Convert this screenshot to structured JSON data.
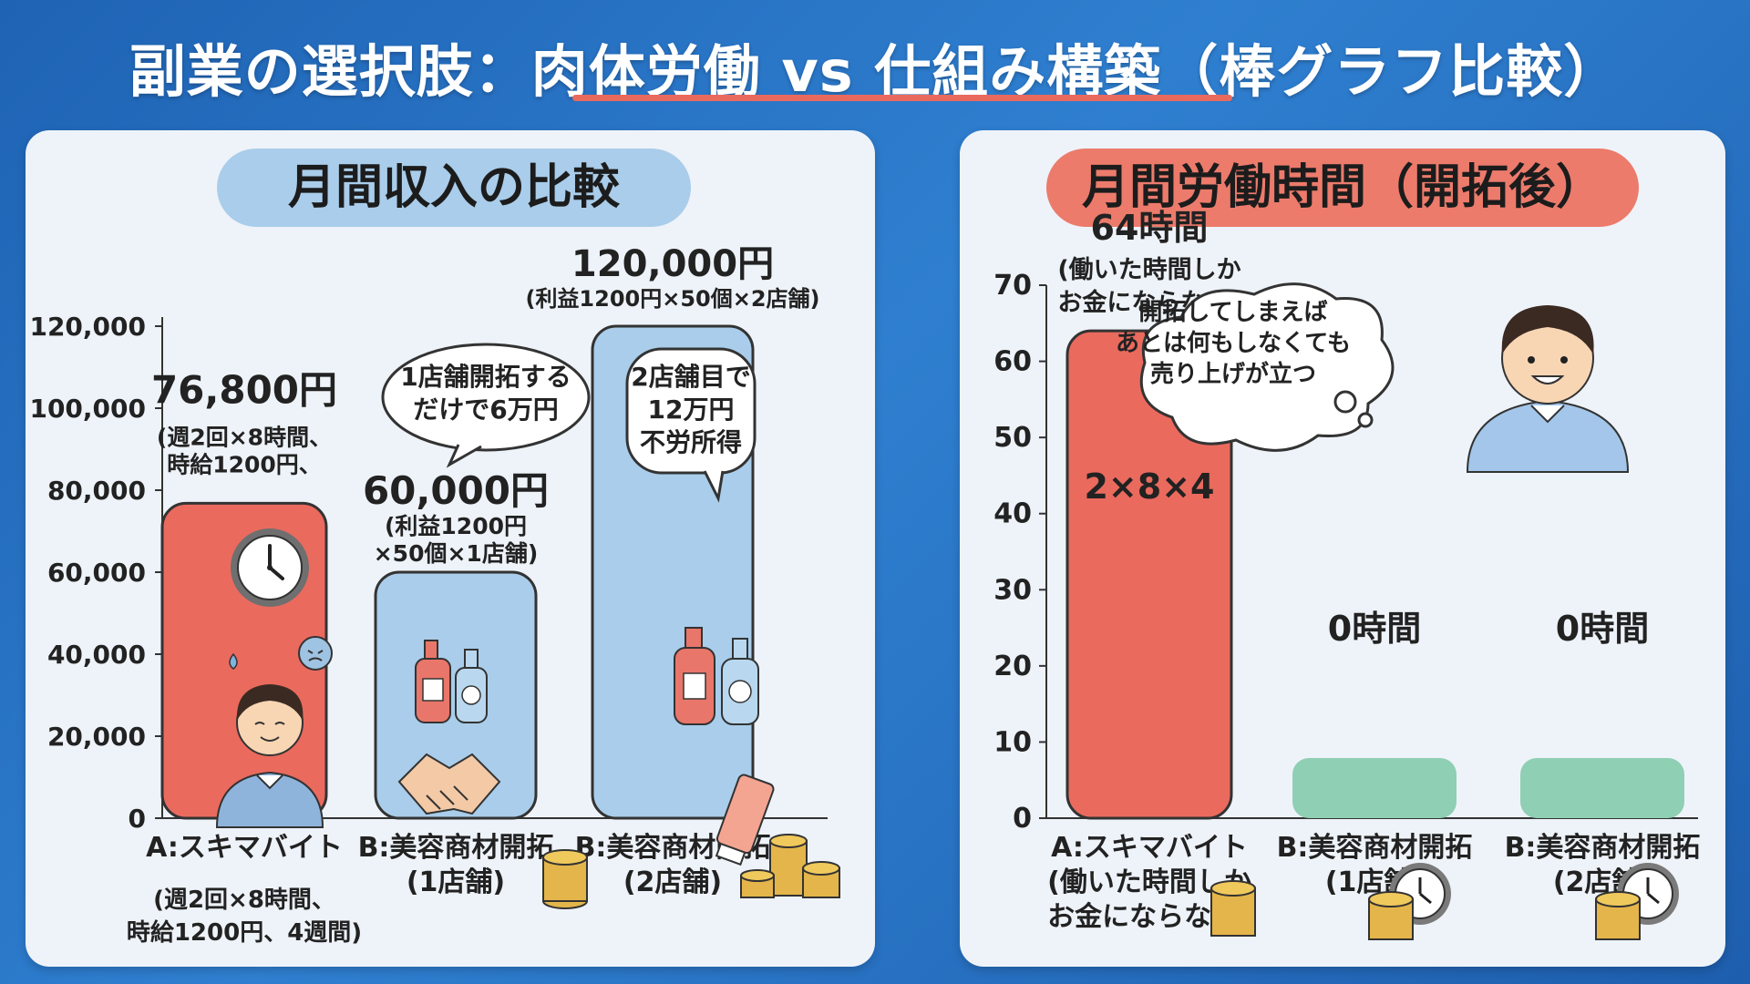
{
  "title": "副業の選択肢：肉体労働 vs 仕組み構築（棒グラフ比較）",
  "colors": {
    "background": "#2a6fc2",
    "red_bar": "#ea6a5e",
    "blue_bar": "#a9cdea",
    "green_bar": "#8fcfb4",
    "panel": "#eef3f9"
  },
  "chart_data": [
    {
      "type": "bar",
      "title": "月間収入の比較",
      "categories": [
        "A:スキマバイト",
        "B:美容商材開拓\n(1店舗)",
        "B:美容商材開拓\n(2店舗)"
      ],
      "category_sublabels": [
        "(週2回×8時間、\n時給1200円、4週間)",
        "",
        ""
      ],
      "values": [
        76800,
        60000,
        120000
      ],
      "value_labels": [
        "76,800円",
        "60,000円",
        "120,000円"
      ],
      "value_notes": [
        "(週2回×8時間、\n時給1200円、",
        "(利益1200円\n×50個×1店舗)",
        "(利益1200円×50個×2店舗)"
      ],
      "bar_colors": [
        "#ea6a5e",
        "#a9cdea",
        "#a9cdea"
      ],
      "bubbles": [
        "1店舗開拓する\nだけで6万円",
        "2店舗目で\n12万円\n不労所得"
      ],
      "yticks": [
        0,
        20000,
        40000,
        60000,
        80000,
        100000,
        120000
      ],
      "ytick_labels": [
        "0",
        "20,000",
        "40,000",
        "60,000",
        "80,000",
        "100,000",
        "120,000"
      ],
      "ylim": [
        0,
        120000
      ]
    },
    {
      "type": "bar",
      "title": "月間労働時間（開拓後）",
      "categories": [
        "A:スキマバイト\n(働いた時間しか\nお金にならない)",
        "B:美容商材開拓\n(1店舗)",
        "B:美容商材開拓\n(2店舗)"
      ],
      "values": [
        64,
        0,
        0
      ],
      "value_labels": [
        "64時間",
        "0時間",
        "0時間"
      ],
      "value_notes": [
        "(働いた時間しか\nお金にならない)",
        "",
        ""
      ],
      "inner_label": "2×8×4",
      "bar_colors": [
        "#ea6a5e",
        "#8fcfb4",
        "#8fcfb4"
      ],
      "thought_bubble": "開拓してしまえば\nあとは何もしなくても\n売り上げが立つ",
      "yticks": [
        0,
        10,
        20,
        30,
        40,
        50,
        60,
        70
      ],
      "ylim": [
        0,
        70
      ]
    }
  ]
}
